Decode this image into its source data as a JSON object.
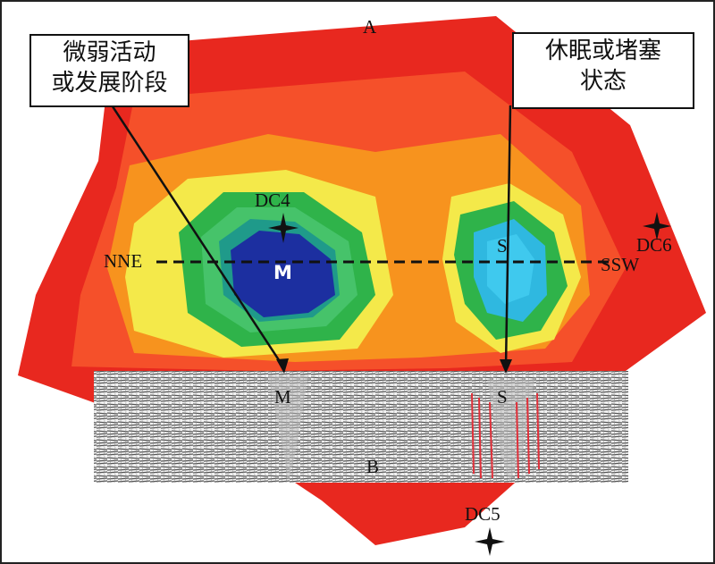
{
  "panel_a_label": "A",
  "panel_b_label": "B",
  "callout_left": {
    "line1": "微弱活动",
    "line2": "或发展阶段"
  },
  "callout_right": {
    "line1": "休眠或堵塞",
    "line2": "状态"
  },
  "wells": [
    "DC4",
    "DC6",
    "DC5"
  ],
  "profile_ends": {
    "start": "NNE",
    "end": "SSW"
  },
  "features": {
    "m_map": "M",
    "s_map": "S",
    "m_section": "M",
    "s_section": "S"
  },
  "colors": {
    "map_base": "#e8281f",
    "outer": "#f5502a",
    "orange": "#f7931e",
    "yellow": "#f4e94a",
    "green": "#2fb34a",
    "blue": "#1c2fa0",
    "cyan": "#2fb8e0",
    "fault": "#e0303a"
  }
}
